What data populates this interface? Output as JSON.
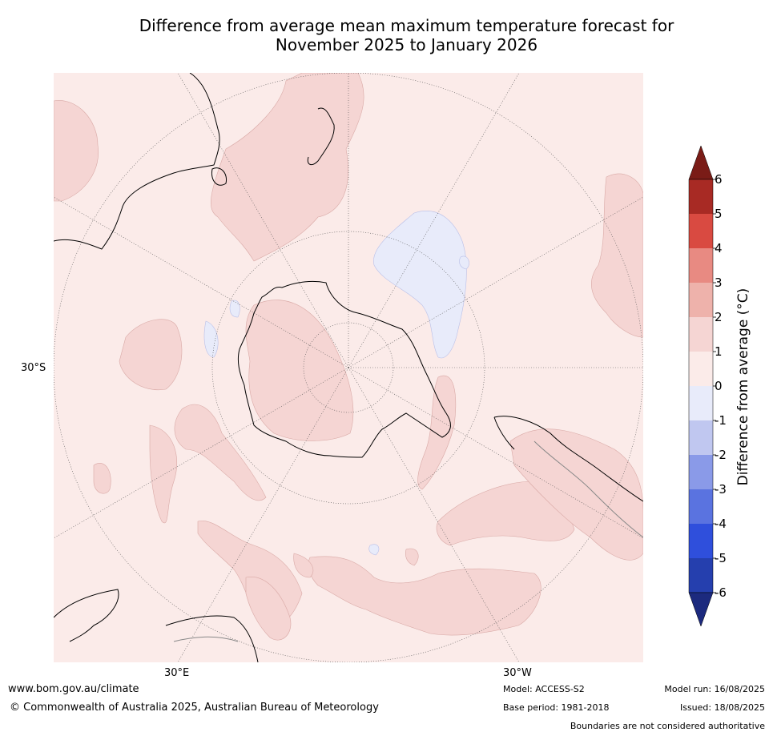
{
  "title": {
    "line1": "Difference from average mean maximum temperature forecast for",
    "line2": "November 2025 to January 2026"
  },
  "map": {
    "lat_label": "30°S",
    "lon_label_east": "30°E",
    "lon_label_west": "30°W"
  },
  "colorbar": {
    "label": "Difference from average (°C)",
    "ticks": [
      "6",
      "5",
      "4",
      "3",
      "2",
      "1",
      "0",
      "-1",
      "-2",
      "-3",
      "-4",
      "-5",
      "-6"
    ],
    "colors": {
      "above_6": "#7a1c17",
      "5_6": "#a82a24",
      "4_5": "#d94a41",
      "3_4": "#e88a82",
      "2_3": "#eeb2ab",
      "1_2": "#f5d5d3",
      "0_1": "#fbebe9",
      "m1_0": "#e8ebfa",
      "m2_m1": "#c0c7f0",
      "m3_m2": "#8a9ae8",
      "m4_m3": "#5a73e0",
      "m5_m4": "#2f4fdc",
      "m6_m5": "#253fae",
      "below_m6": "#1c2a7e"
    }
  },
  "footer": {
    "website": "www.bom.gov.au/climate",
    "copyright": "© Commonwealth of Australia 2025, Australian Bureau of Meteorology",
    "model": "Model: ACCESS-S2",
    "base_period": "Base period: 1981-2018",
    "model_run": "Model run: 16/08/2025",
    "issued": "Issued: 18/08/2025",
    "disclaimer": "Boundaries are not considered authoritative"
  }
}
